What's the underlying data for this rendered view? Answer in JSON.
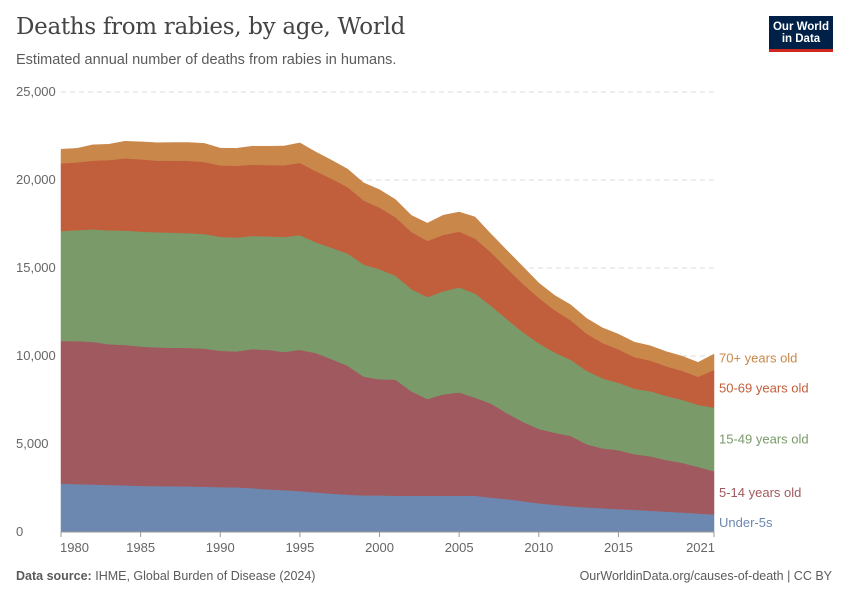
{
  "header": {
    "title": "Deaths from rabies, by age, World",
    "subtitle": "Estimated annual number of deaths from rabies in humans.",
    "logo_line1": "Our World",
    "logo_line2": "in Data"
  },
  "footer": {
    "source_label": "Data source:",
    "source_text": "IHME, Global Burden of Disease (2024)",
    "link_text": "OurWorldinData.org/causes-of-death | CC BY"
  },
  "colors": {
    "under5": "#6d88b0",
    "age5_14": "#a0595e",
    "age15_49": "#7a9a6a",
    "age50_69": "#c15f3c",
    "age70plus": "#c9874a",
    "grid": "#dddddd"
  },
  "chart_data": {
    "type": "area",
    "stacked": true,
    "title": "Deaths from rabies, by age, World",
    "x": [
      1980,
      1981,
      1982,
      1983,
      1984,
      1985,
      1986,
      1987,
      1988,
      1989,
      1990,
      1991,
      1992,
      1993,
      1994,
      1995,
      1996,
      1997,
      1998,
      1999,
      2000,
      2001,
      2002,
      2003,
      2004,
      2005,
      2006,
      2007,
      2008,
      2009,
      2010,
      2011,
      2012,
      2013,
      2014,
      2015,
      2016,
      2017,
      2018,
      2019,
      2020,
      2021
    ],
    "x_ticks": [
      "1980",
      "1985",
      "1990",
      "1995",
      "2000",
      "2005",
      "2010",
      "2015",
      "2021"
    ],
    "y_ticks": [
      "0",
      "5,000",
      "10,000",
      "15,000",
      "20,000",
      "25,000"
    ],
    "ylim": [
      0,
      25000
    ],
    "grid": "horizontal-dashed",
    "legend": "right-inline",
    "series": [
      {
        "name": "Under-5s",
        "color": "#6d88b0",
        "values": [
          2750,
          2720,
          2700,
          2670,
          2650,
          2620,
          2610,
          2600,
          2590,
          2570,
          2550,
          2540,
          2490,
          2420,
          2380,
          2320,
          2250,
          2180,
          2120,
          2080,
          2080,
          2060,
          2060,
          2060,
          2060,
          2060,
          2060,
          1950,
          1870,
          1750,
          1630,
          1540,
          1460,
          1400,
          1350,
          1300,
          1260,
          1210,
          1160,
          1110,
          1050,
          1000
        ]
      },
      {
        "name": "5-14 years old",
        "color": "#a0595e",
        "values": [
          8100,
          8130,
          8100,
          8000,
          7980,
          7920,
          7880,
          7870,
          7870,
          7850,
          7750,
          7720,
          7900,
          7930,
          7850,
          8030,
          7920,
          7640,
          7320,
          6750,
          6600,
          6600,
          5930,
          5500,
          5760,
          5870,
          5570,
          5350,
          4880,
          4510,
          4230,
          4100,
          4000,
          3590,
          3400,
          3350,
          3160,
          3090,
          2930,
          2820,
          2650,
          2450
        ]
      },
      {
        "name": "15-49 years old",
        "color": "#7a9a6a",
        "values": [
          6250,
          6300,
          6400,
          6470,
          6500,
          6530,
          6540,
          6540,
          6520,
          6510,
          6470,
          6470,
          6430,
          6450,
          6530,
          6520,
          6290,
          6330,
          6380,
          6370,
          6250,
          5900,
          5810,
          5790,
          5860,
          5970,
          5920,
          5550,
          5340,
          5090,
          4860,
          4560,
          4330,
          4170,
          3980,
          3830,
          3720,
          3700,
          3640,
          3580,
          3520,
          3620
        ]
      },
      {
        "name": "50-69 years old",
        "color": "#c15f3c",
        "values": [
          3850,
          3850,
          3900,
          3990,
          4100,
          4110,
          4070,
          4090,
          4110,
          4090,
          4060,
          4080,
          4050,
          4050,
          4080,
          4100,
          4040,
          3920,
          3770,
          3640,
          3500,
          3330,
          3250,
          3190,
          3200,
          3170,
          3120,
          3040,
          2890,
          2750,
          2580,
          2400,
          2240,
          2110,
          2010,
          1900,
          1800,
          1740,
          1690,
          1650,
          1600,
          2140
        ]
      },
      {
        "name": "70+ years old",
        "color": "#c9874a",
        "values": [
          800,
          800,
          900,
          900,
          970,
          990,
          1020,
          1030,
          1040,
          1060,
          980,
          990,
          1050,
          1070,
          1090,
          1140,
          1090,
          1050,
          1030,
          1000,
          1020,
          1000,
          940,
          1010,
          1120,
          1110,
          1230,
          1040,
          1020,
          980,
          850,
          840,
          880,
          870,
          860,
          860,
          850,
          840,
          830,
          830,
          820,
          900
        ]
      }
    ]
  }
}
